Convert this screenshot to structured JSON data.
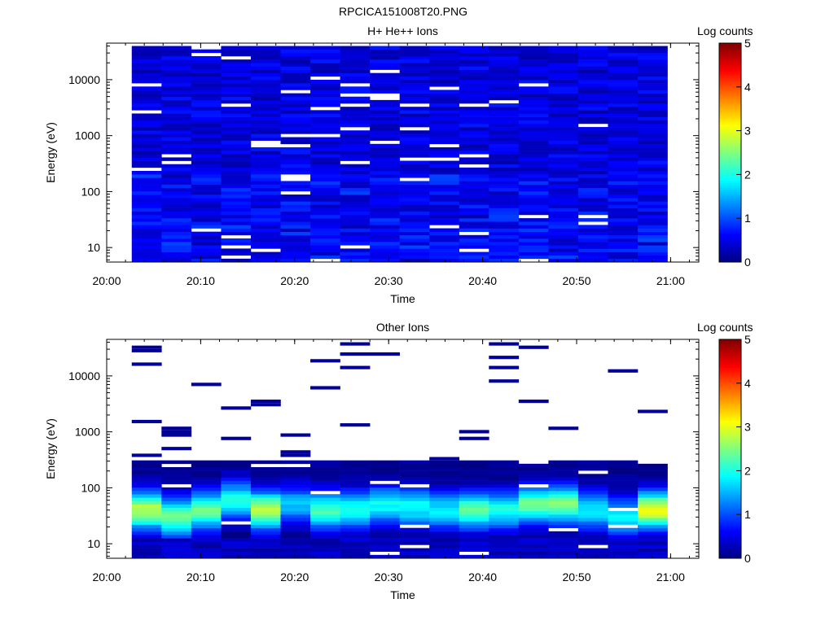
{
  "figure": {
    "title": "RPCICA151008T20.PNG"
  },
  "panels": [
    {
      "title": "H+ He++ Ions",
      "colorbar_title": "Log counts"
    },
    {
      "title": "Other Ions",
      "colorbar_title": "Log counts"
    }
  ],
  "chart_data": [
    {
      "type": "heatmap",
      "title": "H+ He++ Ions",
      "xlabel": "Time",
      "ylabel": "Energy (eV)",
      "x_ticks": [
        "20:00",
        "20:10",
        "20:20",
        "20:30",
        "20:40",
        "20:50",
        "21:00"
      ],
      "xlim": [
        "20:00",
        "21:03"
      ],
      "y_scale": "log",
      "ylim": [
        5.5,
        45000
      ],
      "y_ticks": [
        "10",
        "100",
        "1000",
        "10000"
      ],
      "colorbar": {
        "label": "Log counts",
        "range": [
          0,
          5
        ],
        "ticks": [
          "0",
          "1",
          "2",
          "3",
          "4",
          "5"
        ],
        "colormap": "jet"
      },
      "time_bins_start": [
        "20:02:40",
        "20:05:50",
        "20:09:00",
        "20:12:10",
        "20:15:20",
        "20:18:30",
        "20:21:40",
        "20:24:50",
        "20:28:00",
        "20:31:10",
        "20:34:20",
        "20:37:30",
        "20:40:40",
        "20:43:50",
        "20:47:00",
        "20:50:10",
        "20:53:20",
        "20:56:30"
      ],
      "time_bins_end": "20:59:40",
      "energy_range": [
        5.5,
        40000
      ],
      "energy_bins": 64,
      "typical_log_counts": 0.3,
      "gaps_note": ""
    },
    {
      "type": "heatmap",
      "title": "Other Ions",
      "xlabel": "Time",
      "ylabel": "Energy (eV)",
      "x_ticks": [
        "20:00",
        "20:10",
        "20:20",
        "20:30",
        "20:40",
        "20:50",
        "21:00"
      ],
      "xlim": [
        "20:00",
        "21:03"
      ],
      "y_scale": "log",
      "ylim": [
        5.5,
        45000
      ],
      "y_ticks": [
        "10",
        "100",
        "1000",
        "10000"
      ],
      "colorbar": {
        "label": "Log counts",
        "range": [
          0,
          5
        ],
        "ticks": [
          "0",
          "1",
          "2",
          "3",
          "4",
          "5"
        ],
        "colormap": "jet"
      },
      "time_bins_start": [
        "20:02:40",
        "20:05:50",
        "20:09:00",
        "20:12:10",
        "20:15:20",
        "20:18:30",
        "20:21:40",
        "20:24:50",
        "20:28:00",
        "20:31:10",
        "20:34:20",
        "20:37:30",
        "20:40:40",
        "20:43:50",
        "20:47:00",
        "20:50:10",
        "20:53:20",
        "20:56:30"
      ],
      "time_bins_end": "20:59:40",
      "peak_energy_eV": [
        40,
        30,
        40,
        60,
        40,
        50,
        40,
        40,
        50,
        45,
        40,
        40,
        40,
        50,
        50,
        40,
        30,
        40
      ],
      "peak_log_counts": [
        2.8,
        2.4,
        2.4,
        2.0,
        2.8,
        1.6,
        2.2,
        2.0,
        1.9,
        1.9,
        1.8,
        2.3,
        2.0,
        2.4,
        2.5,
        1.8,
        1.8,
        3.0
      ],
      "sparse_high_energy_log_counts": 0.1
    }
  ]
}
